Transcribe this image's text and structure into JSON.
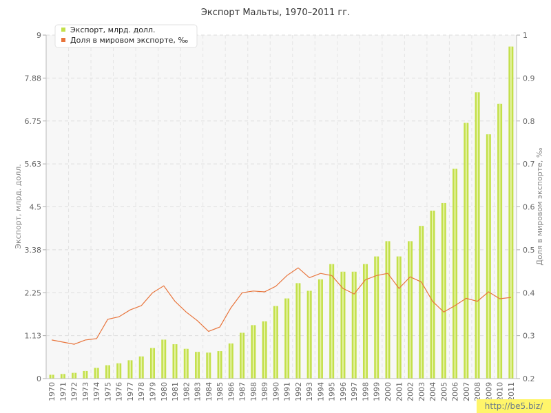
{
  "chart_data": {
    "type": "bar",
    "title": "Экспорт Мальты, 1970–2011 гг.",
    "ylabel": "Экспорт, млрд. долл.",
    "y2label": "Доля в мировом экспорте, ‰",
    "ylim": [
      0,
      9
    ],
    "y2lim": [
      0.2,
      1
    ],
    "yticks": [
      "0",
      "1.13",
      "2.25",
      "3.38",
      "4.5",
      "5.63",
      "6.75",
      "7.88",
      "9"
    ],
    "y2ticks": [
      "0.2",
      "0.3",
      "0.4",
      "0.5",
      "0.6",
      "0.7",
      "0.8",
      "0.9",
      "1"
    ],
    "grid": true,
    "legend_position": "top-left",
    "categories": [
      "1970",
      "1971",
      "1972",
      "1973",
      "1974",
      "1975",
      "1976",
      "1977",
      "1978",
      "1979",
      "1980",
      "1981",
      "1982",
      "1983",
      "1984",
      "1985",
      "1986",
      "1987",
      "1988",
      "1989",
      "1990",
      "1991",
      "1992",
      "1993",
      "1994",
      "1995",
      "1996",
      "1997",
      "1998",
      "1999",
      "2000",
      "2001",
      "2002",
      "2003",
      "2004",
      "2005",
      "2006",
      "2007",
      "2008",
      "2009",
      "2010",
      "2011"
    ],
    "series": [
      {
        "name": "Экспорт, млрд. долл.",
        "type": "bar",
        "axis": "left",
        "color": "#c3e04a",
        "values": [
          0.1,
          0.12,
          0.15,
          0.2,
          0.28,
          0.35,
          0.4,
          0.48,
          0.58,
          0.8,
          1.02,
          0.9,
          0.78,
          0.7,
          0.68,
          0.72,
          0.92,
          1.2,
          1.4,
          1.5,
          1.9,
          2.1,
          2.5,
          2.3,
          2.6,
          3.0,
          2.8,
          2.8,
          3.0,
          3.2,
          3.6,
          3.2,
          3.6,
          4.0,
          4.4,
          4.6,
          5.5,
          6.7,
          7.5,
          6.4,
          7.2,
          8.7
        ]
      },
      {
        "name": "Доля в мировом экспорте, ‰",
        "type": "line",
        "axis": "right",
        "color": "#e8743b",
        "values": [
          0.29,
          0.285,
          0.28,
          0.29,
          0.293,
          0.338,
          0.344,
          0.36,
          0.37,
          0.4,
          0.416,
          0.38,
          0.355,
          0.335,
          0.31,
          0.32,
          0.365,
          0.4,
          0.404,
          0.402,
          0.415,
          0.44,
          0.458,
          0.435,
          0.445,
          0.44,
          0.41,
          0.397,
          0.43,
          0.44,
          0.445,
          0.41,
          0.437,
          0.425,
          0.38,
          0.355,
          0.37,
          0.387,
          0.38,
          0.402,
          0.386,
          0.389
        ]
      }
    ]
  },
  "watermark": "http://be5.biz/"
}
